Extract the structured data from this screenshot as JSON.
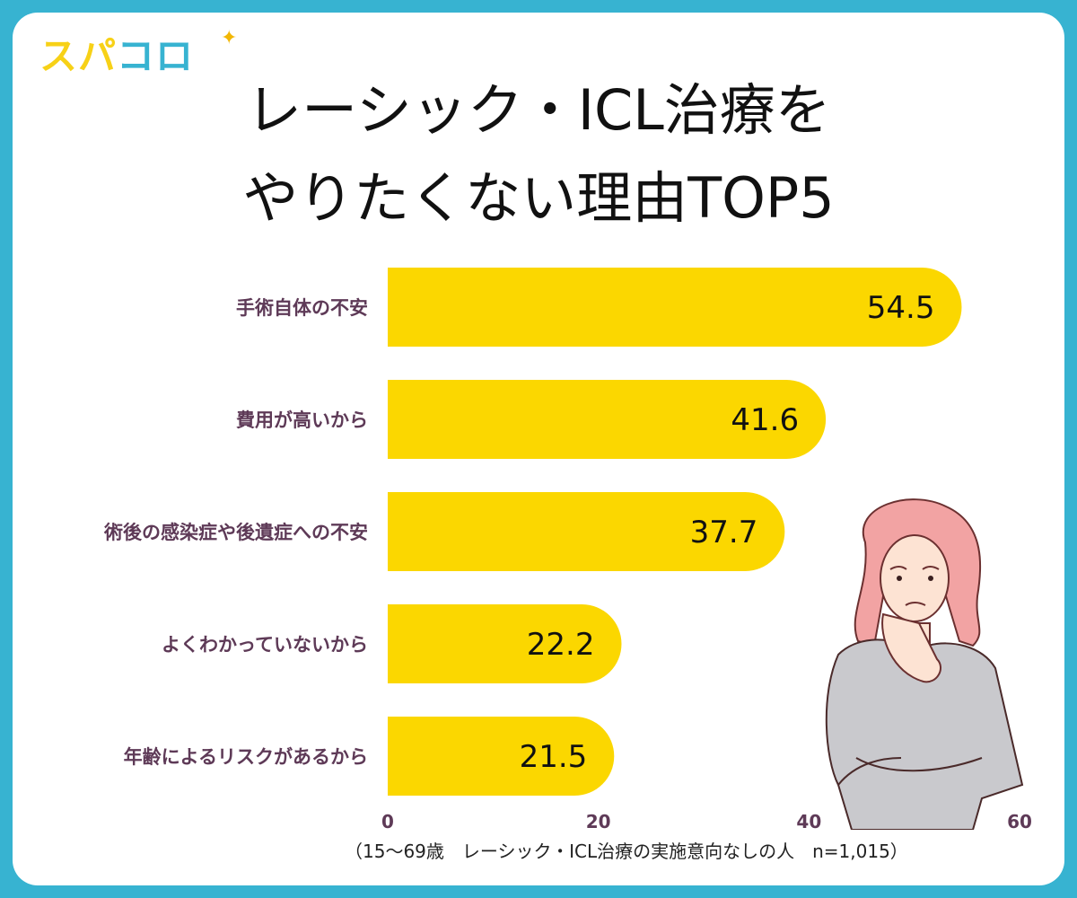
{
  "logo": {
    "part1": "スパ",
    "part2": "コロ"
  },
  "title": {
    "line1": "レーシック・ICL治療を",
    "line2": "やりたくない理由TOP5"
  },
  "note": "（15〜69歳　レーシック・ICL治療の実施意向なしの人　n=1,015）",
  "colors": {
    "bar": "#fbd700",
    "frame": "#37b3d1",
    "label": "#5e3a57"
  },
  "chart_data": {
    "type": "bar",
    "orientation": "horizontal",
    "categories": [
      "手術自体の不安",
      "費用が高いから",
      "術後の感染症や後遺症への不安",
      "よくわかっていないから",
      "年齢によるリスクがあるから"
    ],
    "values": [
      54.5,
      41.6,
      37.7,
      22.2,
      21.5
    ],
    "value_labels": [
      "54.5",
      "41.6",
      "37.7",
      "22.2",
      "21.5"
    ],
    "xlim": [
      0,
      60
    ],
    "xticks": [
      "0",
      "20",
      "40",
      "60"
    ],
    "grid": false,
    "legend": false
  }
}
